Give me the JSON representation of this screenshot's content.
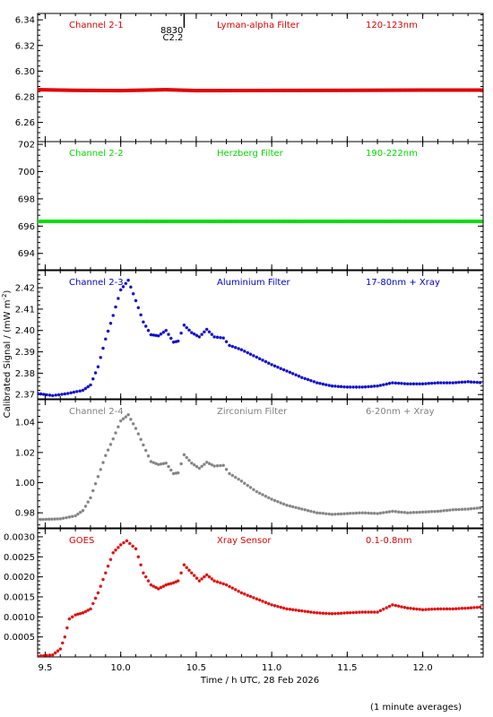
{
  "chart_data": {
    "type": "scatter",
    "xlabel": "Time / h UTC, 28 Feb 2026",
    "ylabel": "Calibrated Signal / (mW m^-2)",
    "ylabel_main": "Calibrated Signal / (mW m",
    "ylabel_exp": "-2",
    "ylabel_close": ")",
    "footnote": "(1 minute averages)",
    "xlim": [
      9.45,
      12.4
    ],
    "xticks": [
      {
        "v": 9.5,
        "t": "9.5"
      },
      {
        "v": 10.0,
        "t": "10.0"
      },
      {
        "v": 10.5,
        "t": "10.5"
      },
      {
        "v": 11.0,
        "t": "11.0"
      },
      {
        "v": 11.5,
        "t": "11.5"
      },
      {
        "v": 12.0,
        "t": "12.0"
      }
    ],
    "flare_marker": {
      "x": 10.42,
      "label_top": "8830",
      "label_bottom": "C2.2"
    },
    "panels": [
      {
        "channel": "Channel 2-1",
        "filter": "Lyman-alpha Filter",
        "band": "120-123nm",
        "color": "#e00000",
        "ylim": [
          6.245,
          6.345
        ],
        "yticks": [
          {
            "v": 6.26,
            "t": "6.26"
          },
          {
            "v": 6.28,
            "t": "6.28"
          },
          {
            "v": 6.3,
            "t": "6.30"
          },
          {
            "v": 6.32,
            "t": "6.32"
          },
          {
            "v": 6.34,
            "t": "6.34"
          }
        ],
        "series": [
          [
            9.45,
            6.2855
          ],
          [
            9.7,
            6.285
          ],
          [
            10.0,
            6.2848
          ],
          [
            10.3,
            6.2855
          ],
          [
            10.5,
            6.2848
          ],
          [
            11.0,
            6.2849
          ],
          [
            11.5,
            6.285
          ],
          [
            12.0,
            6.2852
          ],
          [
            12.4,
            6.2852
          ]
        ]
      },
      {
        "channel": "Channel 2-2",
        "filter": "Herzberg Filter",
        "band": "190-222nm",
        "color": "#00dd00",
        "ylim": [
          692.8,
          702.2
        ],
        "yticks": [
          {
            "v": 694,
            "t": "694"
          },
          {
            "v": 696,
            "t": "696"
          },
          {
            "v": 698,
            "t": "698"
          },
          {
            "v": 700,
            "t": "700"
          },
          {
            "v": 702,
            "t": "702"
          }
        ],
        "series": [
          [
            9.45,
            696.35
          ],
          [
            10.0,
            696.35
          ],
          [
            10.5,
            696.35
          ],
          [
            11.0,
            696.35
          ],
          [
            11.5,
            696.35
          ],
          [
            12.0,
            696.35
          ],
          [
            12.4,
            696.35
          ]
        ]
      },
      {
        "channel": "Channel 2-3",
        "filter": "Aluminium Filter",
        "band": "17-80nm + Xray",
        "color": "#0000cc",
        "ylim": [
          2.368,
          2.428
        ],
        "yticks": [
          {
            "v": 2.37,
            "t": "2.37"
          },
          {
            "v": 2.38,
            "t": "2.38"
          },
          {
            "v": 2.39,
            "t": "2.39"
          },
          {
            "v": 2.4,
            "t": "2.40"
          },
          {
            "v": 2.41,
            "t": "2.41"
          },
          {
            "v": 2.42,
            "t": "2.42"
          }
        ],
        "series": [
          [
            9.45,
            2.3705
          ],
          [
            9.55,
            2.3695
          ],
          [
            9.65,
            2.3705
          ],
          [
            9.75,
            2.372
          ],
          [
            9.8,
            2.3745
          ],
          [
            9.85,
            2.383
          ],
          [
            9.9,
            2.396
          ],
          [
            9.95,
            2.407
          ],
          [
            10.0,
            2.419
          ],
          [
            10.05,
            2.4235
          ],
          [
            10.1,
            2.414
          ],
          [
            10.15,
            2.404
          ],
          [
            10.2,
            2.398
          ],
          [
            10.25,
            2.3975
          ],
          [
            10.3,
            2.4
          ],
          [
            10.35,
            2.3945
          ],
          [
            10.38,
            2.395
          ],
          [
            10.42,
            2.4025
          ],
          [
            10.47,
            2.399
          ],
          [
            10.52,
            2.397
          ],
          [
            10.57,
            2.4005
          ],
          [
            10.62,
            2.397
          ],
          [
            10.68,
            2.3965
          ],
          [
            10.72,
            2.393
          ],
          [
            10.8,
            2.391
          ],
          [
            10.9,
            2.3875
          ],
          [
            11.0,
            2.384
          ],
          [
            11.1,
            2.381
          ],
          [
            11.2,
            2.378
          ],
          [
            11.3,
            2.3755
          ],
          [
            11.4,
            2.374
          ],
          [
            11.5,
            2.3735
          ],
          [
            11.6,
            2.3735
          ],
          [
            11.7,
            2.374
          ],
          [
            11.8,
            2.3755
          ],
          [
            11.9,
            2.375
          ],
          [
            12.0,
            2.375
          ],
          [
            12.1,
            2.3755
          ],
          [
            12.2,
            2.3755
          ],
          [
            12.3,
            2.376
          ],
          [
            12.4,
            2.3755
          ]
        ]
      },
      {
        "channel": "Channel 2-4",
        "filter": "Zirconium Filter",
        "band": "6-20nm + Xray",
        "color": "#808080",
        "ylim": [
          0.97,
          1.055
        ],
        "yticks": [
          {
            "v": 0.98,
            "t": "0.98"
          },
          {
            "v": 1.0,
            "t": "1.00"
          },
          {
            "v": 1.02,
            "t": "1.02"
          },
          {
            "v": 1.04,
            "t": "1.04"
          }
        ],
        "series": [
          [
            9.45,
            0.9755
          ],
          [
            9.6,
            0.976
          ],
          [
            9.7,
            0.978
          ],
          [
            9.75,
            0.9815
          ],
          [
            9.8,
            0.99
          ],
          [
            9.85,
            1.004
          ],
          [
            9.9,
            1.018
          ],
          [
            9.95,
            1.029
          ],
          [
            10.0,
            1.041
          ],
          [
            10.05,
            1.045
          ],
          [
            10.1,
            1.036
          ],
          [
            10.15,
            1.025
          ],
          [
            10.2,
            1.014
          ],
          [
            10.25,
            1.012
          ],
          [
            10.3,
            1.013
          ],
          [
            10.35,
            1.006
          ],
          [
            10.38,
            1.0065
          ],
          [
            10.42,
            1.0185
          ],
          [
            10.47,
            1.013
          ],
          [
            10.52,
            1.0095
          ],
          [
            10.57,
            1.0135
          ],
          [
            10.62,
            1.011
          ],
          [
            10.68,
            1.0115
          ],
          [
            10.72,
            1.006
          ],
          [
            10.8,
            1.001
          ],
          [
            10.9,
            0.994
          ],
          [
            11.0,
            0.989
          ],
          [
            11.1,
            0.985
          ],
          [
            11.2,
            0.9825
          ],
          [
            11.3,
            0.98
          ],
          [
            11.4,
            0.979
          ],
          [
            11.5,
            0.9795
          ],
          [
            11.6,
            0.98
          ],
          [
            11.7,
            0.9795
          ],
          [
            11.8,
            0.981
          ],
          [
            11.9,
            0.98
          ],
          [
            12.0,
            0.9805
          ],
          [
            12.1,
            0.981
          ],
          [
            12.2,
            0.982
          ],
          [
            12.3,
            0.9825
          ],
          [
            12.4,
            0.9835
          ]
        ]
      },
      {
        "channel": "GOES",
        "filter": "Xray Sensor",
        "band": "0.1-0.8nm",
        "color": "#e00000",
        "ylim": [
          0.0,
          0.0032
        ],
        "yticks": [
          {
            "v": 0.0005,
            "t": "0.0005"
          },
          {
            "v": 0.001,
            "t": "0.0010"
          },
          {
            "v": 0.0015,
            "t": "0.0015"
          },
          {
            "v": 0.002,
            "t": "0.0020"
          },
          {
            "v": 0.0025,
            "t": "0.0025"
          },
          {
            "v": 0.003,
            "t": "0.0030"
          }
        ],
        "series": [
          [
            9.45,
            2e-05
          ],
          [
            9.55,
            5e-05
          ],
          [
            9.6,
            0.0002
          ],
          [
            9.63,
            0.0005
          ],
          [
            9.66,
            0.00095
          ],
          [
            9.7,
            0.00105
          ],
          [
            9.75,
            0.0011
          ],
          [
            9.8,
            0.0012
          ],
          [
            9.85,
            0.0016
          ],
          [
            9.9,
            0.0021
          ],
          [
            9.95,
            0.0026
          ],
          [
            10.0,
            0.0028
          ],
          [
            10.04,
            0.0029
          ],
          [
            10.1,
            0.0027
          ],
          [
            10.15,
            0.0021
          ],
          [
            10.2,
            0.0018
          ],
          [
            10.25,
            0.0017
          ],
          [
            10.3,
            0.0018
          ],
          [
            10.35,
            0.00185
          ],
          [
            10.38,
            0.0019
          ],
          [
            10.42,
            0.0023
          ],
          [
            10.47,
            0.0021
          ],
          [
            10.52,
            0.0019
          ],
          [
            10.57,
            0.00205
          ],
          [
            10.62,
            0.0019
          ],
          [
            10.7,
            0.0018
          ],
          [
            10.8,
            0.0016
          ],
          [
            10.9,
            0.00145
          ],
          [
            11.0,
            0.0013
          ],
          [
            11.1,
            0.0012
          ],
          [
            11.2,
            0.00115
          ],
          [
            11.3,
            0.0011
          ],
          [
            11.4,
            0.00108
          ],
          [
            11.5,
            0.0011
          ],
          [
            11.6,
            0.00112
          ],
          [
            11.7,
            0.00112
          ],
          [
            11.8,
            0.0013
          ],
          [
            11.9,
            0.00122
          ],
          [
            12.0,
            0.00118
          ],
          [
            12.1,
            0.0012
          ],
          [
            12.2,
            0.0012
          ],
          [
            12.3,
            0.00122
          ],
          [
            12.4,
            0.00125
          ]
        ]
      }
    ]
  }
}
